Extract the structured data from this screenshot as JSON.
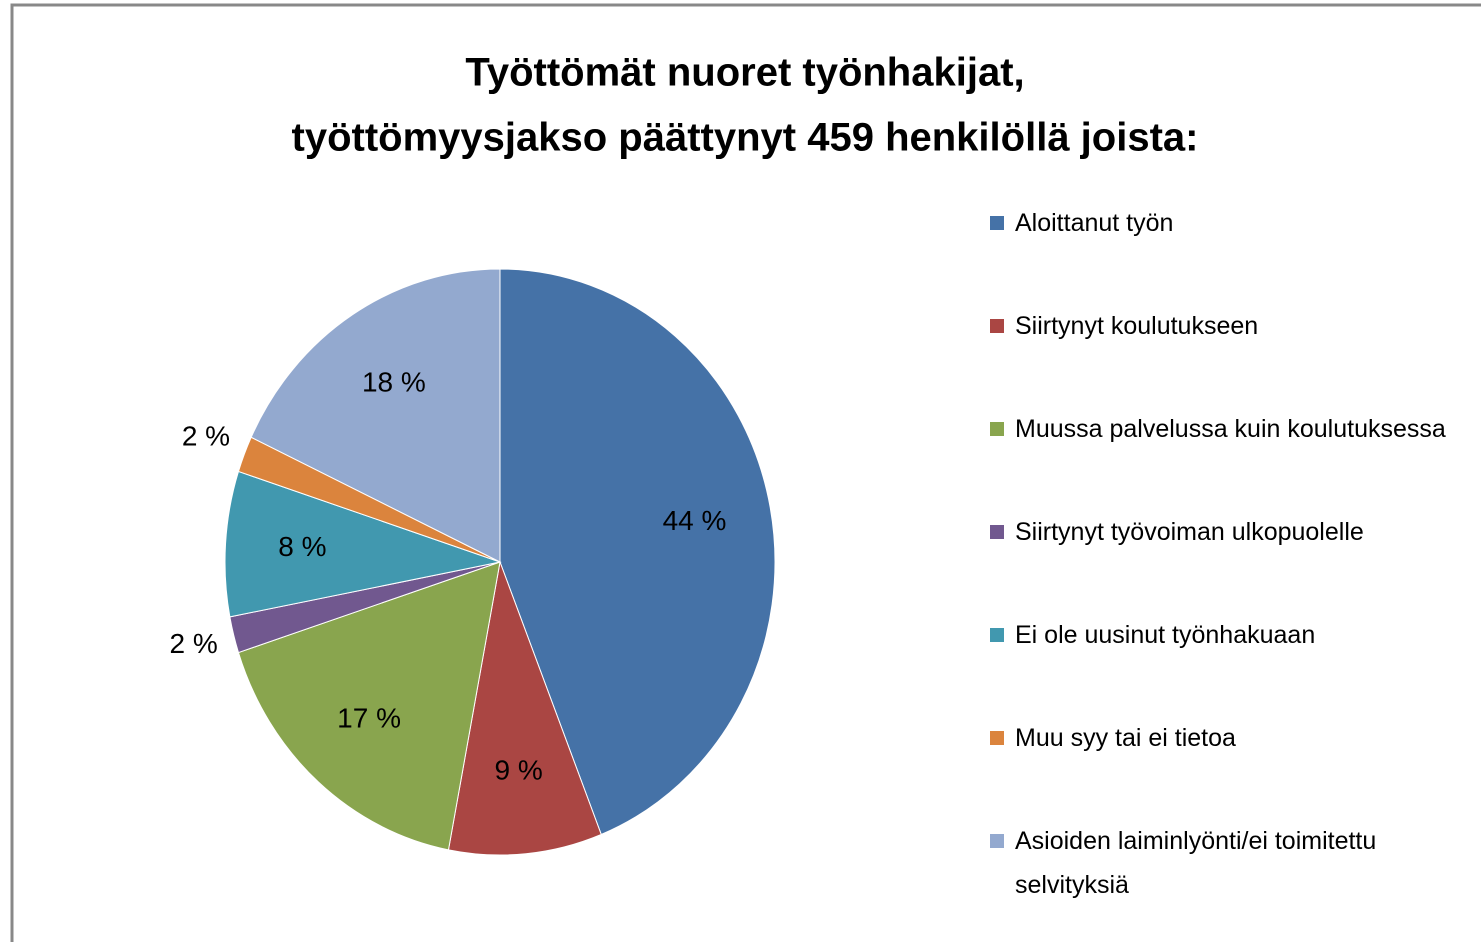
{
  "chart_data": {
    "type": "pie",
    "title": [
      "Työttömät nuoret työnhakijat,",
      "työttömyysjakso päättynyt 459 henkilöllä joista:"
    ],
    "categories": [
      "Aloittanut työn",
      "Siirtynyt koulutukseen",
      "Muussa palvelussa kuin koulutuksessa",
      "Siirtynyt työvoiman ulkopuolelle",
      "Ei ole uusinut työnhakuaan",
      "Muu syy tai ei tietoa",
      "Asioiden laiminlyönti/ei toimitettu selvityksiä"
    ],
    "values": [
      44,
      9,
      17,
      2,
      8,
      2,
      18
    ],
    "value_labels": [
      "44 %",
      "9 %",
      "17 %",
      "2 %",
      "8 %",
      "2 %",
      "18 %"
    ],
    "colors": [
      "#4572a7",
      "#aa4643",
      "#89a54e",
      "#71588f",
      "#4198af",
      "#db843d",
      "#93a9cf"
    ],
    "legend": "right"
  }
}
